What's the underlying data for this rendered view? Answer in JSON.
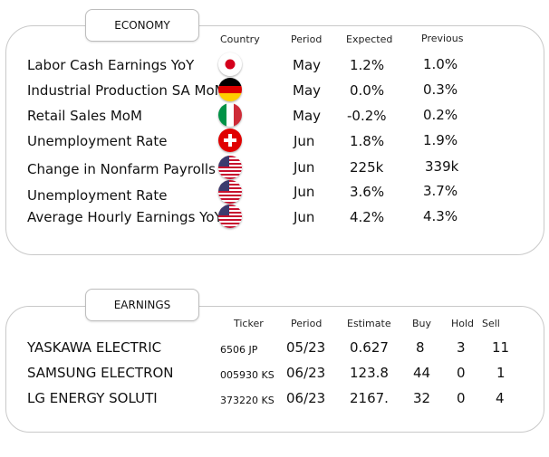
{
  "economy": {
    "tab_label": "ECONOMY",
    "headers": {
      "country": "Country",
      "period": "Period",
      "expected": "Expected",
      "previous": "Previous"
    },
    "rows": [
      {
        "event": "Labor Cash Earnings YoY",
        "country": "Japan",
        "period": "May",
        "expected": "1.2%",
        "previous": "1.0%"
      },
      {
        "event": "Industrial Production SA MoM",
        "country": "Germany",
        "period": "May",
        "expected": "0.0%",
        "previous": "0.3%"
      },
      {
        "event": "Retail Sales MoM",
        "country": "Italy",
        "period": "May",
        "expected": "-0.2%",
        "previous": "0.2%"
      },
      {
        "event": "Unemployment Rate",
        "country": "Switzerland",
        "period": "Jun",
        "expected": "1.8%",
        "previous": "1.9%"
      },
      {
        "event": "Change in Nonfarm Payrolls",
        "country": "United States",
        "period": "Jun",
        "expected": "225k",
        "previous": "339k"
      },
      {
        "event": "Unemployment Rate",
        "country": "United States",
        "period": "Jun",
        "expected": "3.6%",
        "previous": "3.7%"
      },
      {
        "event": "Average Hourly Earnings YoY",
        "country": "United States",
        "period": "Jun",
        "expected": "4.2%",
        "previous": "4.3%"
      }
    ]
  },
  "earnings": {
    "tab_label": "EARNINGS",
    "headers": {
      "ticker": "Ticker",
      "period": "Period",
      "estimate": "Estimate",
      "buy": "Buy",
      "hold": "Hold",
      "sell": "Sell"
    },
    "rows": [
      {
        "company": "YASKAWA ELECTRIC",
        "ticker": "6506 JP",
        "period": "05/23",
        "estimate": "0.627",
        "buy": "8",
        "hold": "3",
        "sell": "11"
      },
      {
        "company": "SAMSUNG ELECTRON",
        "ticker": "005930 KS",
        "period": "06/23",
        "estimate": "123.8",
        "buy": "44",
        "hold": "0",
        "sell": "1"
      },
      {
        "company": "LG ENERGY SOLUTI",
        "ticker": "373220 KS",
        "period": "06/23",
        "estimate": "2167.",
        "buy": "32",
        "hold": "0",
        "sell": "4"
      }
    ]
  },
  "flag_icons": [
    "japan-flag-icon",
    "germany-flag-icon",
    "italy-flag-icon",
    "switzerland-flag-icon",
    "us-flag-icon",
    "us-flag-icon",
    "us-flag-icon"
  ]
}
